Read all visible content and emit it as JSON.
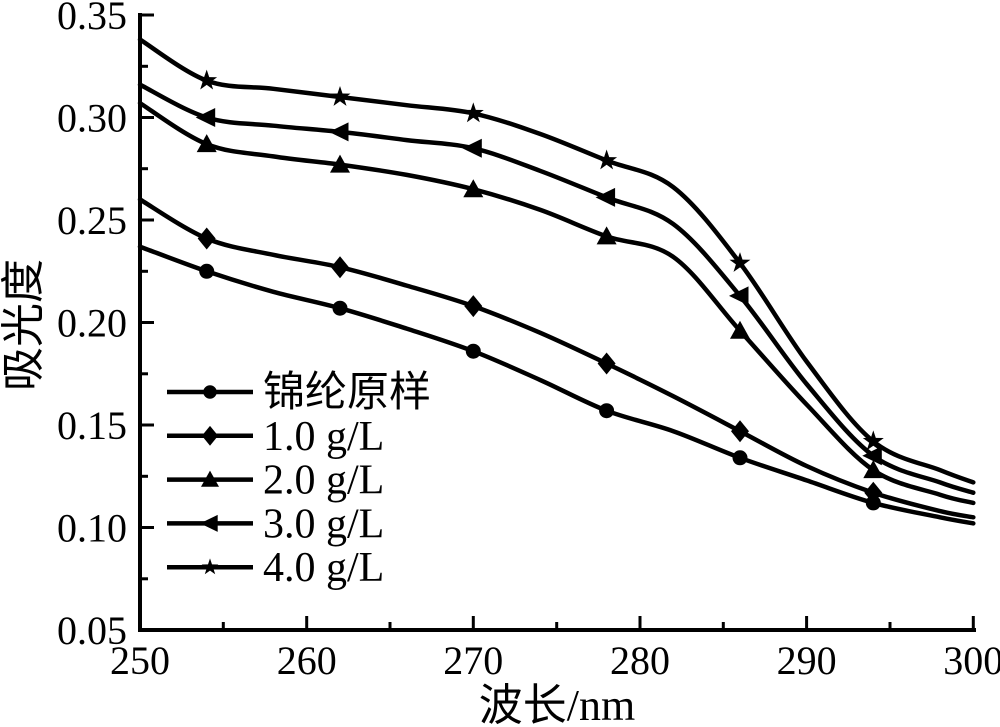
{
  "figure": {
    "description": "UV absorbance spectra line chart, black on white, Origin-style axes"
  },
  "chart_data": {
    "type": "line",
    "title": "",
    "xlabel": "波长/nm",
    "ylabel": "吸光度",
    "xlim": [
      250,
      300
    ],
    "ylim": [
      0.05,
      0.35
    ],
    "x_major_ticks": [
      250,
      260,
      270,
      280,
      290,
      300
    ],
    "x_minor_ticks": [
      255,
      265,
      275,
      285,
      295
    ],
    "y_major_ticks": [
      "0.05",
      "0.10",
      "0.15",
      "0.20",
      "0.25",
      "0.30",
      "0.35"
    ],
    "y_minor_ticks": [
      0.075,
      0.1,
      0.125,
      0.15,
      0.175,
      0.2,
      0.225,
      0.25,
      0.275,
      0.3,
      0.325
    ],
    "grid": false,
    "legend_position": "inside-left-middle",
    "line_color": "#000000",
    "background_color": "#ffffff",
    "x": [
      250,
      254,
      258,
      262,
      266,
      270,
      274,
      278,
      282,
      286,
      290,
      294,
      298,
      300
    ],
    "marker_x": [
      254,
      262,
      270,
      278,
      286,
      294
    ],
    "series": [
      {
        "name": "锦纶原样",
        "marker": "circle",
        "values": [
          0.237,
          0.225,
          0.215,
          0.207,
          0.197,
          0.186,
          0.172,
          0.157,
          0.147,
          0.134,
          0.123,
          0.112,
          0.105,
          0.102
        ]
      },
      {
        "name": "1.0 g/L",
        "marker": "diamond",
        "values": [
          0.26,
          0.241,
          0.233,
          0.227,
          0.218,
          0.208,
          0.195,
          0.18,
          0.164,
          0.147,
          0.13,
          0.117,
          0.108,
          0.105
        ]
      },
      {
        "name": "2.0 g/L",
        "marker": "triangle-up",
        "values": [
          0.307,
          0.287,
          0.281,
          0.277,
          0.272,
          0.265,
          0.255,
          0.242,
          0.232,
          0.196,
          0.16,
          0.128,
          0.116,
          0.112
        ]
      },
      {
        "name": "3.0 g/L",
        "marker": "triangle-left",
        "values": [
          0.316,
          0.3,
          0.296,
          0.293,
          0.289,
          0.285,
          0.274,
          0.261,
          0.248,
          0.213,
          0.17,
          0.135,
          0.122,
          0.117
        ]
      },
      {
        "name": "4.0 g/L",
        "marker": "star",
        "values": [
          0.338,
          0.318,
          0.314,
          0.31,
          0.306,
          0.302,
          0.292,
          0.279,
          0.266,
          0.229,
          0.181,
          0.142,
          0.128,
          0.122
        ]
      }
    ]
  }
}
